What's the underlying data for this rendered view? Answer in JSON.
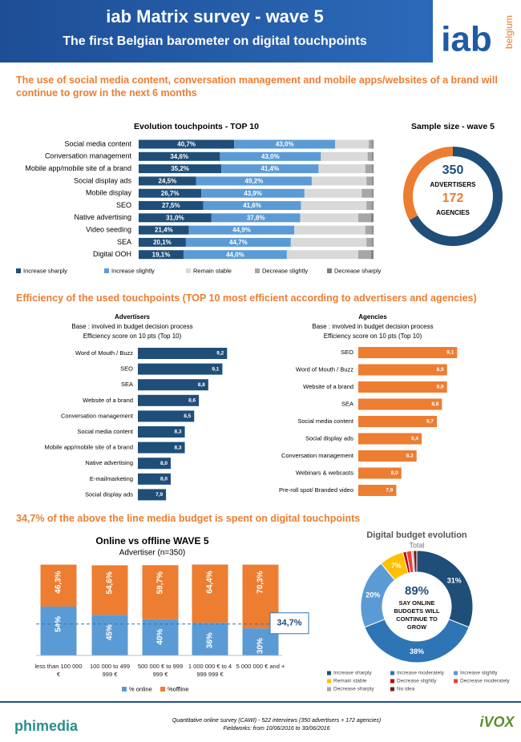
{
  "header": {
    "title": "iab Matrix survey - wave 5",
    "subtitle": "The first Belgian barometer on digital touchpoints",
    "logo": "iab",
    "logo_sub": "belgium"
  },
  "headlines": [
    "The use of social media content, conversation management and mobile apps/websites of a brand will continue to grow in the next 6 months",
    "Efficiency of the used touchpoints (TOP 10 most efficient according to advertisers and agencies)",
    "34,7% of the above the line media budget is spent on digital touchpoints"
  ],
  "chart_data": [
    {
      "type": "stacked_bar_h",
      "title": "Evolution touchpoints - TOP 10",
      "categories": [
        "Social media content",
        "Conversation management",
        "Mobile app/mobile site of a brand",
        "Social display ads",
        "Mobile display",
        "SEO",
        "Native advertising",
        "Video seeding",
        "SEA",
        "Digital OOH"
      ],
      "xlim": [
        0,
        100
      ],
      "series": [
        {
          "name": "Increase sharply",
          "color": "#1f4e79",
          "values": [
            40.7,
            34.6,
            35.2,
            24.5,
            26.7,
            27.5,
            31.0,
            21.4,
            20.1,
            19.1
          ],
          "value_labels": [
            "40,7%",
            "34,6%",
            "35,2%",
            "24,5%",
            "26,7%",
            "27,5%",
            "31,0%",
            "21,4%",
            "20,1%",
            "19,1%"
          ]
        },
        {
          "name": "Increase slightly",
          "color": "#5b9bd5",
          "values": [
            43.0,
            43.0,
            41.4,
            49.2,
            43.9,
            41.6,
            37.8,
            44.9,
            44.7,
            44.0
          ],
          "value_labels": [
            "43,0%",
            "43,0%",
            "41,4%",
            "49,2%",
            "43,9%",
            "41,6%",
            "37,8%",
            "44,9%",
            "44,7%",
            "44,0%"
          ]
        },
        {
          "name": "Remain stable",
          "color": "#d9d9d9",
          "values": [
            14.3,
            19.9,
            19.9,
            23.3,
            24.4,
            27.9,
            24.7,
            30.2,
            32.2,
            30.4
          ]
        },
        {
          "name": "Decrease slightly",
          "color": "#a6a6a6",
          "values": [
            1.5,
            2,
            3,
            2.5,
            4.5,
            2.5,
            5.5,
            3,
            2.5,
            5.5
          ]
        },
        {
          "name": "Decrease sharply",
          "color": "#7f7f7f",
          "values": [
            0.5,
            0.5,
            0.5,
            0.5,
            0.5,
            0.5,
            1,
            0.5,
            0.5,
            1
          ]
        }
      ]
    },
    {
      "type": "donut",
      "title": "Sample size - wave 5",
      "categories": [
        "ADVERTISERS",
        "AGENCIES"
      ],
      "values": [
        350,
        172
      ],
      "colors": [
        "#1f4e79",
        "#ed7d31"
      ]
    },
    {
      "type": "bar_h",
      "title": "Advertisers",
      "subtitle": [
        "Base : involved in budget decision process",
        "Efficiency score on 10 pts (Top 10)"
      ],
      "categories": [
        "Word of Mouth / Buzz",
        "SEO",
        "SEA",
        "Website of a brand",
        "Conversation management",
        "Social media content",
        "Mobile app/mobile site of a brand",
        "Native advertising",
        "E-mailmarketing",
        "Social display ads"
      ],
      "values": [
        9.2,
        9.1,
        8.8,
        8.6,
        8.5,
        8.3,
        8.3,
        8.0,
        8.0,
        7.9
      ],
      "value_labels": [
        "9,2",
        "9,1",
        "8,8",
        "8,6",
        "8,5",
        "8,3",
        "8,3",
        "8,0",
        "8,0",
        "7,9"
      ],
      "color": "#1f4e79",
      "xlim": [
        7.3,
        9.4
      ]
    },
    {
      "type": "bar_h",
      "title": "Agencies",
      "subtitle": [
        "Base : involved in budget decision process",
        "Efficiency score on 10 pts (Top 10)"
      ],
      "categories": [
        "SEO",
        "Word of Mouth / Buzz",
        "Website of a brand",
        "SEA",
        "Social media content",
        "Social display ads",
        "Conversation management",
        "Webinars & webcasts",
        "Pre-roll spot/ Branded video"
      ],
      "values": [
        9.1,
        8.9,
        8.9,
        8.8,
        8.7,
        8.4,
        8.3,
        8.0,
        7.9
      ],
      "value_labels": [
        "9,1",
        "8,9",
        "8,9",
        "8,8",
        "8,7",
        "8,4",
        "8,3",
        "8,0",
        "7,9"
      ],
      "color": "#ed7d31",
      "xlim": [
        7.15,
        9.3
      ]
    },
    {
      "type": "stacked_column",
      "title": "Online vs offline WAVE 5",
      "subtitle": "Advertiser (n=350)",
      "categories": [
        "less than 100 000 €",
        "100 000 to 499 999 €",
        "500 000 € to 999 999 €",
        "1 000 000 € to 4 999 999 €",
        "5 000 000 € and +"
      ],
      "ylim": [
        0,
        100
      ],
      "series": [
        {
          "name": "% online",
          "color": "#5b9bd5",
          "values": [
            54,
            45,
            40,
            36,
            30
          ],
          "value_labels": [
            "54%",
            "45%",
            "40%",
            "36%",
            "30%"
          ]
        },
        {
          "name": "%offline",
          "color": "#ed7d31",
          "values": [
            46.3,
            54.6,
            59.7,
            64.4,
            70.3
          ],
          "value_labels": [
            "46,3%",
            "54,6%",
            "59,7%",
            "64,4%",
            "70,3%"
          ]
        }
      ],
      "reference_line": {
        "value": 34.7,
        "label": "34,7%"
      }
    },
    {
      "type": "donut",
      "title": "Digital budget evolution",
      "subtitle": "Total",
      "categories": [
        "Increase sharply",
        "Increase moderately",
        "Increase slightly",
        "Remain stable",
        "Decrease slightly",
        "Decrease moderately",
        "Decrease sharply",
        "No idea"
      ],
      "values": [
        31,
        38,
        20,
        7,
        1,
        1.5,
        0.5,
        1
      ],
      "value_labels": [
        "31%",
        "38%",
        "20%",
        "7%",
        null,
        null,
        null,
        null
      ],
      "colors": [
        "#1f4e79",
        "#2e75b6",
        "#5b9bd5",
        "#ffc000",
        "#c00000",
        "#e8423a",
        "#a6a6a6",
        "#7b1c1c"
      ],
      "center_text": [
        "89%",
        "SAY ONLINE BUDGETS WILL CONTINUE TO GROW"
      ]
    }
  ],
  "footer": {
    "note": "Quantitative online survey (CAWI) - 522 interviews (350 advertisers + 172 agencies)",
    "dates": "Fieldworks: from 10/06/2016 to 30/06/2016",
    "logo_left": "phimedia",
    "logo_right": "iVOX"
  }
}
